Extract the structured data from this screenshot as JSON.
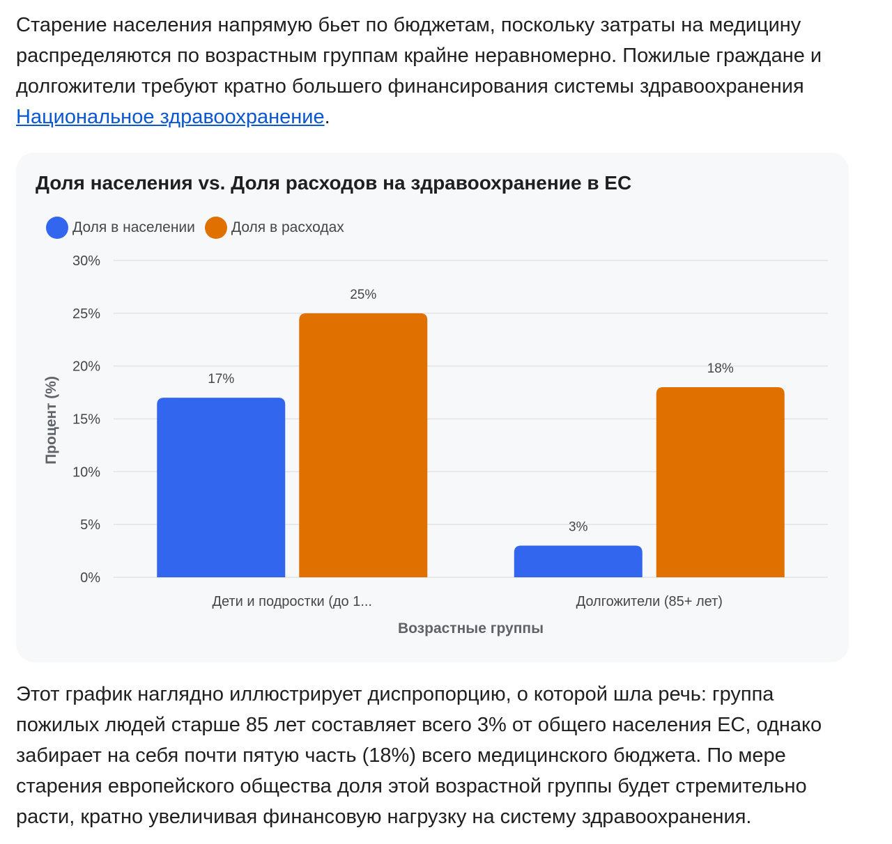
{
  "intro": {
    "text_before": "Старение населения напрямую бьет по бюджетам, поскольку затраты на медицину распределяются по возрастным группам крайне неравномерно. Пожилые граждане и долгожители требуют кратно большего финансирования системы здравоохранения ",
    "link_text": "Национальное здравоохранение",
    "text_after": "."
  },
  "conclusion": {
    "text": "Этот график наглядно иллюстрирует диспропорцию, о которой шла речь: группа пожилых людей старше 85 лет составляет всего 3% от общего населения ЕС, однако забирает на себя почти пятую часть (18%) всего медицинского бюджета. По мере старения европейского общества доля этой возрастной группы будет стремительно расти, кратно увеличивая финансовую нагрузку на систему здравоохранения."
  },
  "colors": {
    "population": "#3366ee",
    "spending": "#e07000",
    "grid": "#e3e3e3"
  },
  "chart_data": {
    "type": "bar",
    "title": "Доля населения vs. Доля расходов на здравоохранение в ЕС",
    "categories": [
      "Дети и подростки (до 1...",
      "Долгожители (85+ лет)"
    ],
    "series": [
      {
        "name": "Доля в населении",
        "values": [
          17,
          3
        ]
      },
      {
        "name": "Доля в расходах",
        "values": [
          25,
          18
        ]
      }
    ],
    "data_labels": [
      [
        "17%",
        "3%"
      ],
      [
        "25%",
        "18%"
      ]
    ],
    "xlabel": "Возрастные группы",
    "ylabel": "Процент (%)",
    "ylim": [
      0,
      30
    ],
    "yticks": [
      "0%",
      "5%",
      "10%",
      "15%",
      "20%",
      "25%",
      "30%"
    ],
    "ytick_values": [
      0,
      5,
      10,
      15,
      20,
      25,
      30
    ],
    "grid": true,
    "legend_position": "top-left"
  }
}
